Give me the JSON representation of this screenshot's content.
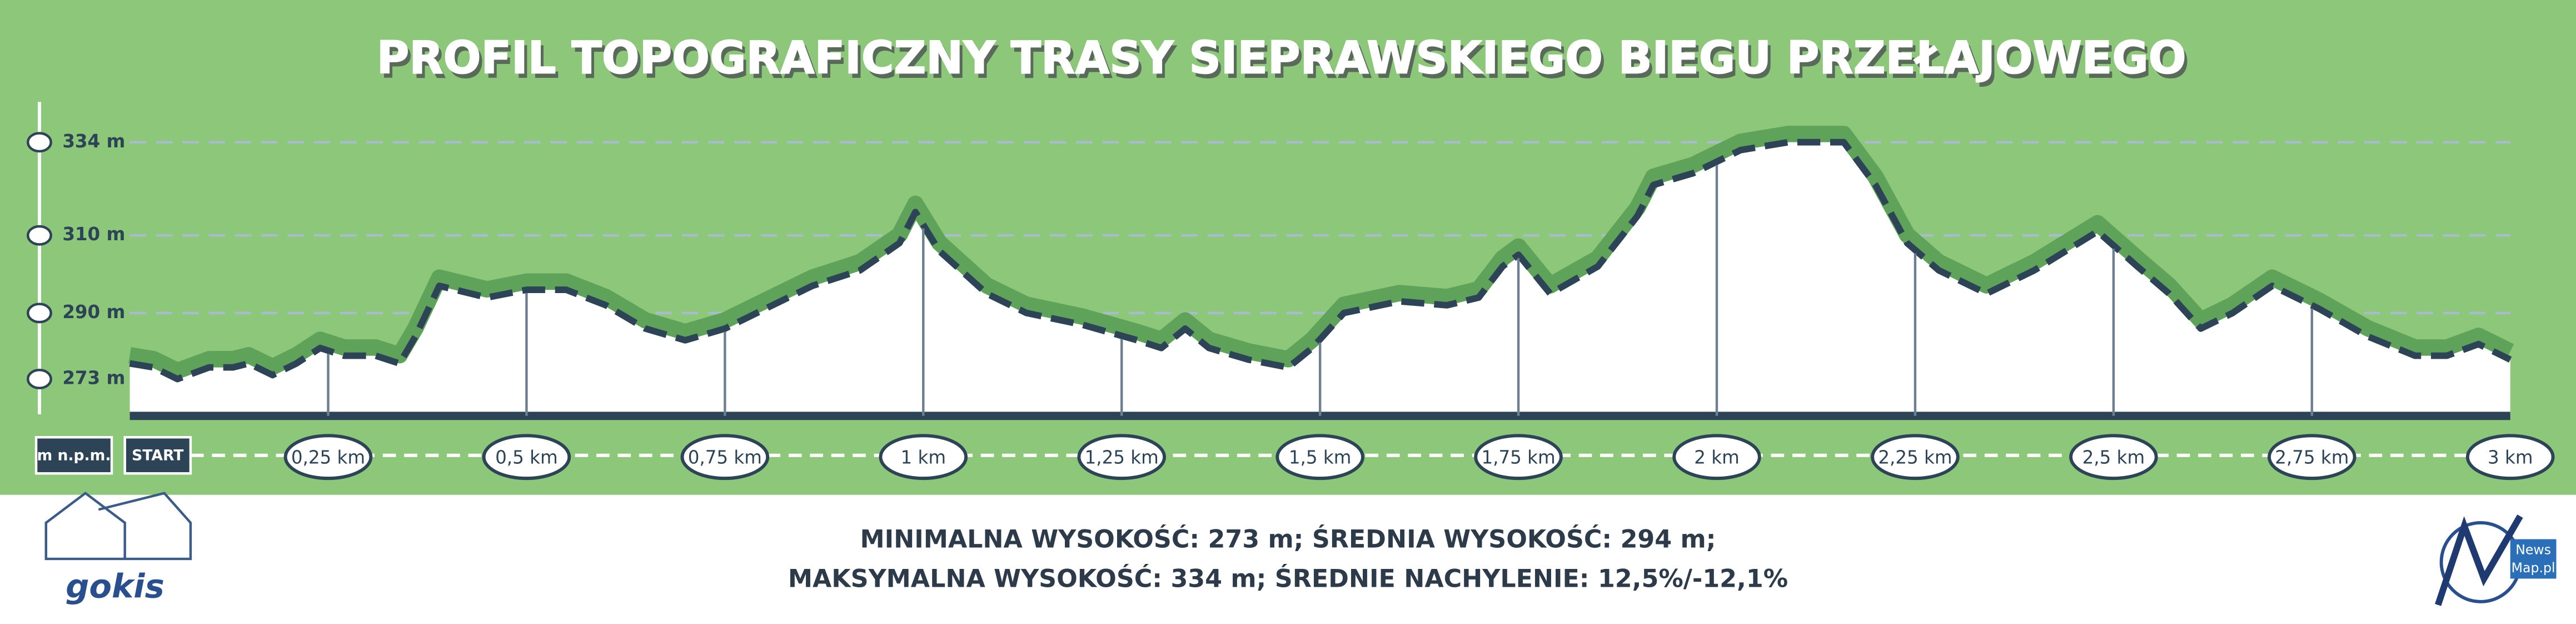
{
  "chart_data": {
    "type": "area",
    "title": "PROFIL TOPOGRAFICZNY TRASY SIEPRAWSKIEGO BIEGU PRZEŁAJOWEGO",
    "ylabel": "m n.p.m.",
    "x": [
      0,
      0.03,
      0.06,
      0.1,
      0.13,
      0.15,
      0.18,
      0.21,
      0.24,
      0.27,
      0.31,
      0.34,
      0.36,
      0.39,
      0.45,
      0.5,
      0.55,
      0.6,
      0.65,
      0.7,
      0.75,
      0.81,
      0.86,
      0.92,
      0.97,
      0.99,
      1.02,
      1.08,
      1.13,
      1.2,
      1.27,
      1.3,
      1.33,
      1.36,
      1.41,
      1.46,
      1.49,
      1.53,
      1.6,
      1.66,
      1.7,
      1.73,
      1.75,
      1.79,
      1.85,
      1.9,
      1.92,
      1.97,
      2.03,
      2.09,
      2.16,
      2.2,
      2.24,
      2.28,
      2.34,
      2.4,
      2.48,
      2.53,
      2.57,
      2.61,
      2.65,
      2.7,
      2.76,
      2.82,
      2.88,
      2.92,
      2.96,
      3.0
    ],
    "series": [
      {
        "name": "wysokość",
        "color": "#2d4356",
        "values": [
          277,
          276,
          273,
          276,
          276,
          277,
          274,
          277,
          281,
          279,
          279,
          277,
          284,
          297,
          294,
          296,
          296,
          292,
          286,
          283,
          286,
          292,
          297,
          301,
          308,
          316,
          306,
          295,
          290,
          287,
          283,
          281,
          286,
          281,
          278,
          276,
          281,
          290,
          293,
          292,
          294,
          302,
          305,
          295,
          302,
          315,
          323,
          326,
          332,
          334,
          334,
          323,
          308,
          301,
          295,
          301,
          311,
          302,
          295,
          286,
          290,
          297,
          291,
          284,
          279,
          279,
          282,
          278
        ]
      }
    ],
    "xlim": [
      0,
      3
    ],
    "xticks": [
      {
        "value": 0,
        "label": "START"
      },
      {
        "value": 0.25,
        "label": "0,25 km"
      },
      {
        "value": 0.5,
        "label": "0,5 km"
      },
      {
        "value": 0.75,
        "label": "0,75 km"
      },
      {
        "value": 1,
        "label": "1 km"
      },
      {
        "value": 1.25,
        "label": "1,25 km"
      },
      {
        "value": 1.5,
        "label": "1,5 km"
      },
      {
        "value": 1.75,
        "label": "1,75 km"
      },
      {
        "value": 2,
        "label": "2 km"
      },
      {
        "value": 2.25,
        "label": "2,25 km"
      },
      {
        "value": 2.5,
        "label": "2,5 km"
      },
      {
        "value": 2.75,
        "label": "2,75 km"
      },
      {
        "value": 3,
        "label": "3 km"
      }
    ],
    "ylim": [
      263.5,
      341
    ],
    "yticks": [
      {
        "value": 273,
        "label": "273 m"
      },
      {
        "value": 290,
        "label": "290 m"
      },
      {
        "value": 310,
        "label": "310 m"
      },
      {
        "value": 334,
        "label": "334 m"
      }
    ],
    "grid": true,
    "annotations": [
      "MINIMALNA WYSOKOŚĆ: 273 m; ŚREDNIA WYSOKOŚĆ: 294 m;",
      "MAKSYMALNA WYSOKOŚĆ: 334 m; ŚREDNIE NACHYLENIE: 12,5%/-12,1%"
    ]
  },
  "logos": {
    "left": "gokis",
    "right": [
      "News",
      "Map.pl"
    ]
  }
}
